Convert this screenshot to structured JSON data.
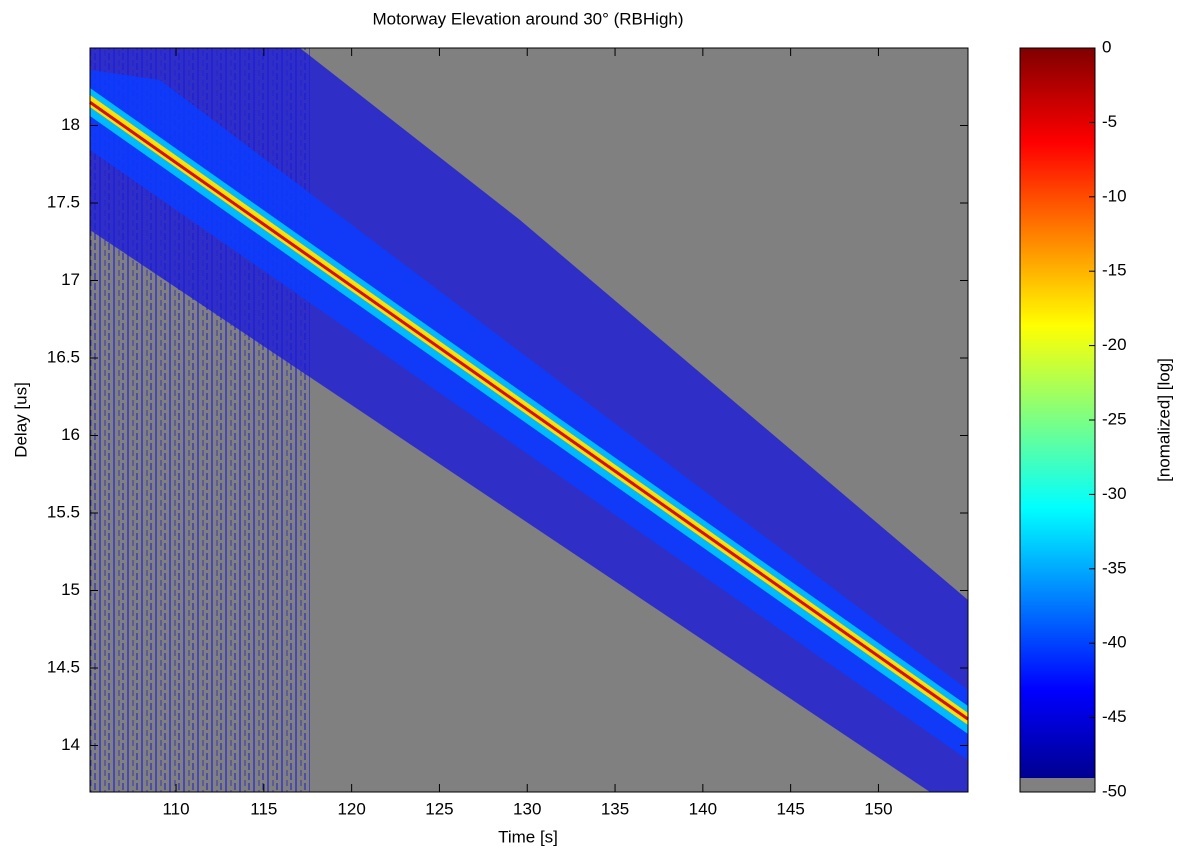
{
  "chart_data": {
    "type": "heatmap",
    "title": "Motorway Elevation around 30° (RBHigh)",
    "x_label": "Time [s]",
    "y_label": "Delay [us]",
    "colorbar_label": "[nomalized] [log]",
    "x": [
      105.1,
      155.1
    ],
    "values": [
      18.15,
      14.17
    ],
    "color": "#d01010",
    "xlim": [
      105.1,
      155.1
    ],
    "xticks": [
      110,
      115,
      120,
      125,
      130,
      135,
      140,
      145,
      150
    ],
    "ylim": [
      13.7,
      18.5
    ],
    "yticks": [
      14,
      14.5,
      15,
      15.5,
      16,
      16.5,
      17,
      17.5,
      18
    ],
    "clim": [
      -50,
      0
    ],
    "cticks": [
      0,
      -5,
      -10,
      -15,
      -20,
      -25,
      -30,
      -35,
      -40,
      -45,
      -50
    ]
  }
}
